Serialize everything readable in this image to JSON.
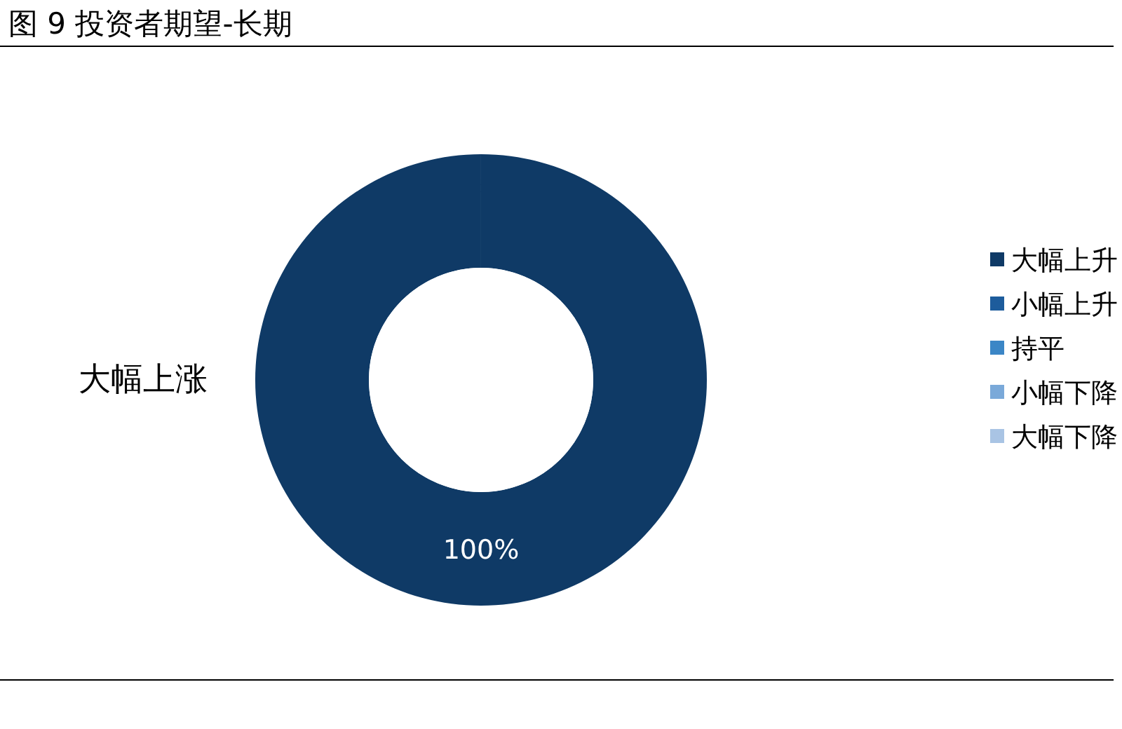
{
  "chart_data": {
    "type": "donut",
    "title": "图 9 投资者期望-长期",
    "categories": [
      "大幅上升",
      "小幅上升",
      "持平",
      "小幅下降",
      "大幅下降"
    ],
    "values": [
      100,
      0,
      0,
      0,
      0
    ],
    "colors": [
      "#0f3a66",
      "#1d5c9c",
      "#3b86c6",
      "#7aa9d9",
      "#a9c4e4"
    ],
    "value_labels": [
      "100%",
      null,
      null,
      null,
      null
    ],
    "annotations": [
      "大幅上涨"
    ],
    "legend": "right"
  }
}
